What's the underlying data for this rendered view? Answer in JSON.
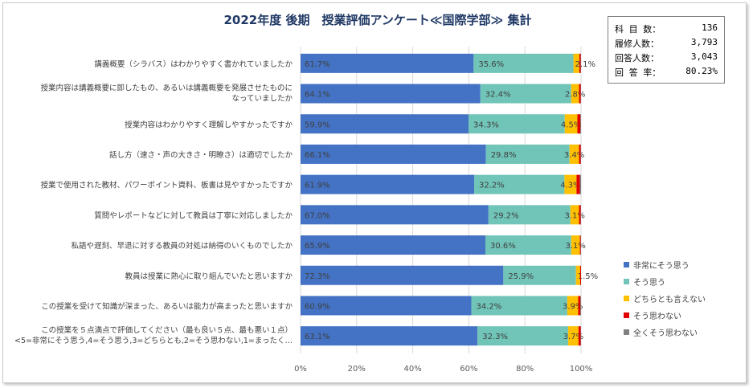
{
  "title": "2022年度 後期　授業評価アンケート≪国際学部≫ 集計",
  "stats": [
    {
      "label": "科 目 数：",
      "value": "136"
    },
    {
      "label": "履修人数：",
      "value": "3,793"
    },
    {
      "label": "回答人数：",
      "value": "3,043"
    },
    {
      "label": "回 答 率：",
      "value": "80.23%"
    }
  ],
  "colors": {
    "series": [
      "#4472c4",
      "#70c4b8",
      "#ffc000",
      "#e00000",
      "#808080"
    ],
    "grid": "#d9d9d9",
    "axis_text": "#595959",
    "category_text": "#404040",
    "title": "#1f3864"
  },
  "chart_data": {
    "type": "bar",
    "orientation": "horizontal",
    "stacked": "percent",
    "categories": [
      [
        "講義概要（シラバス）はわかりやすく書かれていましたか"
      ],
      [
        "授業内容は講義概要に即したもの、あるいは講義概要を発展させたものに",
        "なっていましたか"
      ],
      [
        "授業内容はわかりやすく理解しやすかったですか"
      ],
      [
        "話し方（速さ・声の大きさ・明瞭さ）は適切でしたか"
      ],
      [
        "授業で使用された教材、パワーポイント資料、板書は見やすかったですか"
      ],
      [
        "質問やレポートなどに対して教員は丁寧に対応しましたか"
      ],
      [
        "私語や遅刻、早退に対する教員の対処は納得のいくものでしたか"
      ],
      [
        "教員は授業に熱心に取り組んでいたと思いますか"
      ],
      [
        "この授業を受けて知識が深まった、あるいは能力が高まったと思いますか"
      ],
      [
        "この授業を５点満点で評価してください（最も良い５点、最も悪い１点）",
        "<5=非常にそう思う,4=そう思う,3=どちらとも,2=そう思わない,1=まったく…"
      ]
    ],
    "series": [
      {
        "name": "非常にそう思う",
        "values": [
          61.7,
          64.1,
          59.9,
          66.1,
          61.9,
          67.0,
          65.9,
          72.3,
          60.9,
          63.1
        ],
        "labels": [
          "61.7%",
          "64.1%",
          "59.9%",
          "66.1%",
          "61.9%",
          "67.0%",
          "65.9%",
          "72.3%",
          "60.9%",
          "63.1%"
        ]
      },
      {
        "name": "そう思う",
        "values": [
          35.6,
          32.4,
          34.3,
          29.8,
          32.2,
          29.2,
          30.6,
          25.9,
          34.2,
          32.3
        ],
        "labels": [
          "35.6%",
          "32.4%",
          "34.3%",
          "29.8%",
          "32.2%",
          "29.2%",
          "30.6%",
          "25.9%",
          "34.2%",
          "32.3%"
        ]
      },
      {
        "name": "どちらとも言えない",
        "values": [
          2.1,
          2.8,
          4.5,
          3.4,
          4.3,
          3.1,
          3.1,
          1.5,
          3.9,
          3.7
        ],
        "labels": [
          "2.1%",
          "2.8%",
          "4.5%",
          "3.4%",
          "4.3%",
          "3.1%",
          "3.1%",
          "1.5%",
          "3.9%",
          "3.7%"
        ]
      },
      {
        "name": "そう思わない",
        "values": [
          0.5,
          0.6,
          1.1,
          0.6,
          1.2,
          0.6,
          0.3,
          0.3,
          0.8,
          0.8
        ]
      },
      {
        "name": "全くそう思わない",
        "values": [
          0.1,
          0.1,
          0.2,
          0.1,
          0.4,
          0.1,
          0.1,
          0.0,
          0.2,
          0.1
        ]
      }
    ],
    "xlim": [
      0,
      100
    ],
    "xticks": [
      "0%",
      "20%",
      "40%",
      "60%",
      "80%",
      "100%"
    ],
    "grid": true,
    "legend_position": "right"
  }
}
